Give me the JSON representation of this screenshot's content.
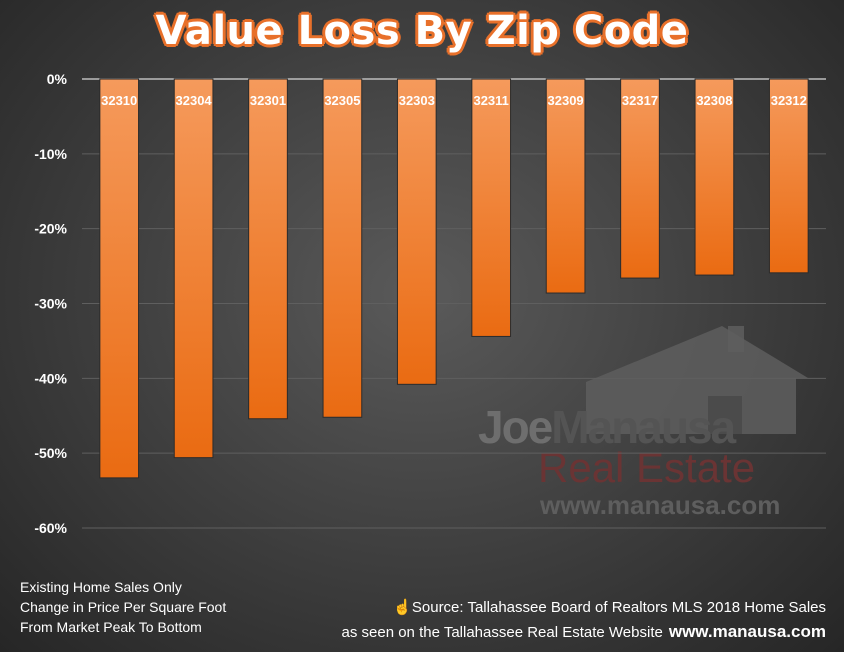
{
  "chart_data": {
    "type": "bar",
    "title": "Value Loss By Zip Code",
    "categories": [
      "32310",
      "32304",
      "32301",
      "32305",
      "32303",
      "32311",
      "32309",
      "32317",
      "32308",
      "32312"
    ],
    "values": [
      -53.3,
      -50.6,
      -45.4,
      -45.2,
      -40.8,
      -34.4,
      -28.6,
      -26.6,
      -26.2,
      -25.9
    ],
    "ylim": [
      -60,
      0
    ],
    "yticks": [
      0,
      -10,
      -20,
      -30,
      -40,
      -50,
      -60
    ],
    "ytick_labels": [
      "0%",
      "-10%",
      "-20%",
      "-30%",
      "-40%",
      "-50%",
      "-60%"
    ],
    "grid": true,
    "bar_color": "#f07a2a"
  },
  "notes": [
    "Existing Home Sales Only",
    "Change in Price Per Square Foot",
    "From Market Peak To Bottom"
  ],
  "source": {
    "line1": "Source: Tallahassee Board of Realtors MLS 2018 Home Sales",
    "line2": "as seen on the Tallahassee Real Estate Website",
    "site": "www.manausa.com",
    "icon": "hand-pointer-icon"
  },
  "watermark": {
    "joe": "Joe",
    "manausa": "Manausa",
    "real_estate": "Real Estate",
    "url": "www.manausa.com"
  }
}
